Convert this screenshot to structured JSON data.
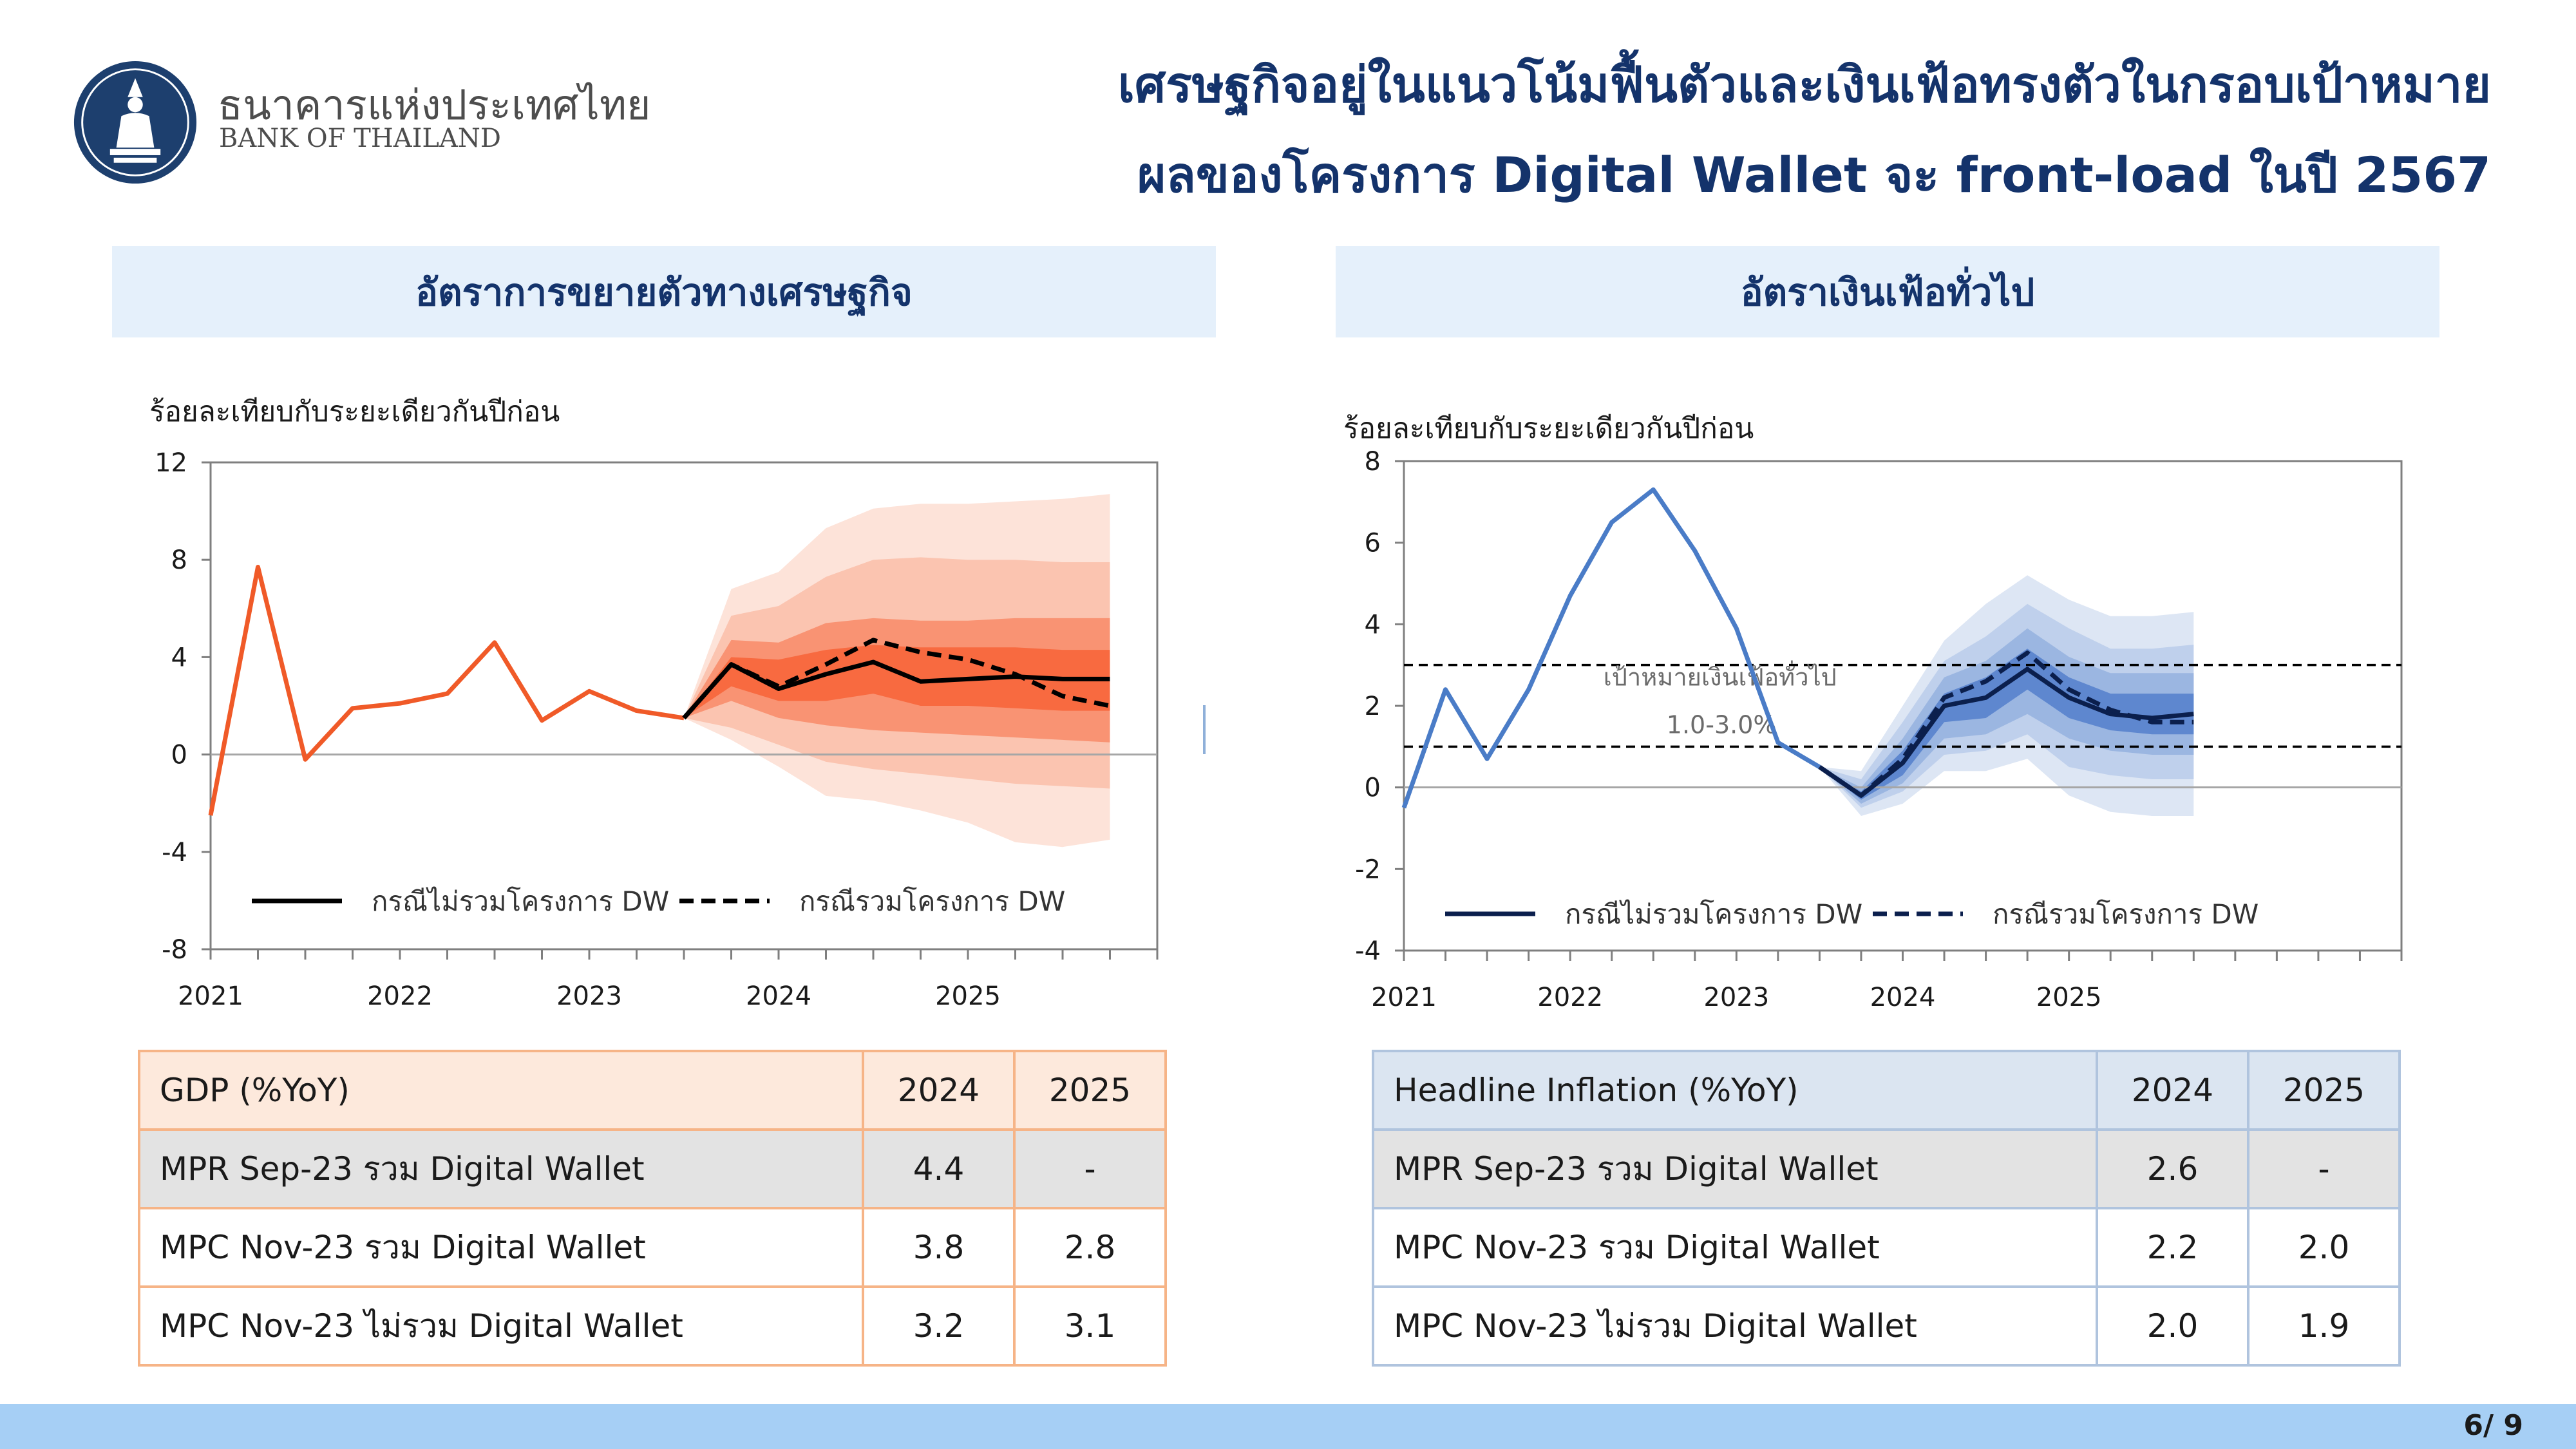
{
  "header": {
    "bank_name_th": "ธนาคารแห่งประเทศไทย",
    "bank_name_en": "BANK OF THAILAND",
    "title_line1": "เศรษฐกิจอยู่ในแนวโน้มฟื้นตัวและเงินเฟ้อทรงตัวในกรอบเป้าหมาย",
    "title_line2": "ผลของโครงการ Digital Wallet จะ front-load ในปี 2567"
  },
  "colors": {
    "gdp_line": "#f05a28",
    "gdp_fan": [
      "#fde3d9",
      "#fbc4b0",
      "#f99373",
      "#f86a40"
    ],
    "inf_line": "#4a7cc7",
    "inf_fan": [
      "#dde6f4",
      "#bfd0ec",
      "#9bb6e1",
      "#5e87cf"
    ],
    "projection_line": "#000000",
    "inf_projection_line": "#0b1f4d"
  },
  "chart_data": [
    {
      "type": "line",
      "section_title": "อัตราการขยายตัวทางเศรษฐกิจ",
      "ylabel": "ร้อยละเทียบกับระยะเดียวกันปีก่อน",
      "ylim": [
        -8,
        12
      ],
      "yticks": [
        -8,
        -4,
        0,
        4,
        8,
        12
      ],
      "xlim": [
        0,
        20
      ],
      "xticks": [
        {
          "x": 0,
          "label": "2021"
        },
        {
          "x": 4,
          "label": "2022"
        },
        {
          "x": 8,
          "label": "2023"
        },
        {
          "x": 12,
          "label": "2024"
        },
        {
          "x": 16,
          "label": "2025"
        }
      ],
      "grid": false,
      "legend_position": "bottom-left inside plot",
      "series": [
        {
          "role": "actual",
          "x": [
            0,
            1,
            2,
            3,
            4,
            5,
            6,
            7,
            8,
            9,
            10
          ],
          "values": [
            -2.5,
            7.7,
            -0.2,
            1.9,
            2.1,
            2.5,
            4.6,
            1.4,
            2.6,
            1.8,
            1.5
          ]
        },
        {
          "name": "กรณีไม่รวมโครงการ DW",
          "style": "solid",
          "x": [
            10,
            11,
            12,
            13,
            14,
            15,
            16,
            17,
            18,
            19
          ],
          "values": [
            1.5,
            3.7,
            2.7,
            3.3,
            3.8,
            3.0,
            3.1,
            3.2,
            3.1,
            3.1
          ]
        },
        {
          "name": "กรณีรวมโครงการ DW",
          "style": "dashed",
          "x": [
            10,
            11,
            12,
            13,
            14,
            15,
            16,
            17,
            18,
            19
          ],
          "values": [
            1.5,
            3.7,
            2.8,
            3.7,
            4.7,
            4.2,
            3.9,
            3.3,
            2.4,
            2.0
          ]
        }
      ],
      "fan": {
        "x": [
          10,
          11,
          12,
          13,
          14,
          15,
          16,
          17,
          18,
          19
        ],
        "bands": [
          {
            "upper": [
              1.5,
              6.8,
              7.5,
              9.3,
              10.1,
              10.3,
              10.3,
              10.4,
              10.5,
              10.7
            ],
            "lower": [
              1.5,
              0.6,
              -0.5,
              -1.7,
              -1.9,
              -2.3,
              -2.8,
              -3.6,
              -3.8,
              -3.5
            ]
          },
          {
            "upper": [
              1.5,
              5.7,
              6.1,
              7.3,
              8.0,
              8.1,
              8.0,
              8.0,
              7.9,
              7.9
            ],
            "lower": [
              1.5,
              1.1,
              0.4,
              -0.3,
              -0.6,
              -0.8,
              -1.0,
              -1.2,
              -1.3,
              -1.4
            ]
          },
          {
            "upper": [
              1.5,
              4.7,
              4.6,
              5.4,
              5.6,
              5.5,
              5.5,
              5.6,
              5.6,
              5.6
            ],
            "lower": [
              1.5,
              2.2,
              1.5,
              1.2,
              1.0,
              0.9,
              0.8,
              0.7,
              0.6,
              0.5
            ]
          },
          {
            "upper": [
              1.5,
              4.0,
              3.9,
              4.3,
              4.5,
              4.4,
              4.4,
              4.4,
              4.3,
              4.3
            ],
            "lower": [
              1.5,
              2.8,
              2.2,
              2.2,
              2.5,
              2.0,
              2.0,
              1.9,
              1.8,
              1.8
            ]
          }
        ]
      }
    },
    {
      "type": "line",
      "section_title": "อัตราเงินเฟ้อทั่วไป",
      "ylabel": "ร้อยละเทียบกับระยะเดียวกันปีก่อน",
      "ylim": [
        -4,
        8
      ],
      "yticks": [
        -4,
        -2,
        0,
        2,
        4,
        6,
        8
      ],
      "xlim": [
        0,
        24
      ],
      "xticks": [
        {
          "x": 0,
          "label": "2021"
        },
        {
          "x": 4,
          "label": "2022"
        },
        {
          "x": 8,
          "label": "2023"
        },
        {
          "x": 12,
          "label": "2024"
        },
        {
          "x": 16,
          "label": "2025"
        }
      ],
      "grid": false,
      "legend_position": "bottom-left inside plot",
      "target_band": {
        "lower": 1.0,
        "upper": 3.0,
        "label_line1": "เป้าหมายเงินเฟ้อทั่วไป",
        "label_line2": "1.0-3.0%"
      },
      "series": [
        {
          "role": "actual",
          "x": [
            0,
            1,
            2,
            3,
            4,
            5,
            6,
            7,
            8,
            9,
            10
          ],
          "values": [
            -0.5,
            2.4,
            0.7,
            2.4,
            4.7,
            6.5,
            7.3,
            5.8,
            3.9,
            1.1,
            0.5
          ]
        },
        {
          "name": "กรณีไม่รวมโครงการ DW",
          "style": "solid",
          "x": [
            10,
            11,
            12,
            13,
            14,
            15,
            16,
            17,
            18,
            19
          ],
          "values": [
            0.5,
            -0.2,
            0.6,
            2.0,
            2.2,
            2.9,
            2.2,
            1.8,
            1.7,
            1.8
          ]
        },
        {
          "name": "กรณีรวมโครงการ DW",
          "style": "dashed",
          "x": [
            10,
            11,
            12,
            13,
            14,
            15,
            16,
            17,
            18,
            19
          ],
          "values": [
            0.5,
            -0.2,
            0.7,
            2.2,
            2.6,
            3.3,
            2.4,
            1.9,
            1.6,
            1.6
          ]
        }
      ],
      "fan": {
        "x": [
          10,
          11,
          12,
          13,
          14,
          15,
          16,
          17,
          18,
          19
        ],
        "bands": [
          {
            "upper": [
              0.5,
              0.4,
              2.0,
              3.6,
              4.5,
              5.2,
              4.6,
              4.2,
              4.2,
              4.3
            ],
            "lower": [
              0.5,
              -0.7,
              -0.4,
              0.4,
              0.4,
              0.7,
              -0.2,
              -0.6,
              -0.7,
              -0.7
            ]
          },
          {
            "upper": [
              0.5,
              0.2,
              1.6,
              3.1,
              3.7,
              4.5,
              3.9,
              3.4,
              3.4,
              3.5
            ],
            "lower": [
              0.5,
              -0.5,
              -0.1,
              0.8,
              0.9,
              1.3,
              0.5,
              0.3,
              0.2,
              0.2
            ]
          },
          {
            "upper": [
              0.5,
              0.0,
              1.2,
              2.7,
              3.1,
              3.9,
              3.2,
              2.8,
              2.8,
              2.8
            ],
            "lower": [
              0.5,
              -0.4,
              0.1,
              1.2,
              1.3,
              1.8,
              1.2,
              0.9,
              0.8,
              0.8
            ]
          },
          {
            "upper": [
              0.5,
              -0.1,
              0.9,
              2.3,
              2.7,
              3.4,
              2.7,
              2.3,
              2.3,
              2.3
            ],
            "lower": [
              0.5,
              -0.3,
              0.3,
              1.6,
              1.7,
              2.4,
              1.7,
              1.4,
              1.3,
              1.3
            ]
          }
        ]
      }
    }
  ],
  "gdp_table": {
    "header": [
      "GDP (%YoY)",
      "2024",
      "2025"
    ],
    "rows": [
      [
        "MPR Sep-23 รวม Digital Wallet",
        "4.4",
        "-"
      ],
      [
        "MPC Nov-23 รวม Digital Wallet",
        "3.8",
        "2.8"
      ],
      [
        "MPC Nov-23 ไม่รวม Digital Wallet",
        "3.2",
        "3.1"
      ]
    ]
  },
  "inflation_table": {
    "header": [
      "Headline Inflation (%YoY)",
      "2024",
      "2025"
    ],
    "rows": [
      [
        "MPR Sep-23 รวม Digital Wallet",
        "2.6",
        "-"
      ],
      [
        "MPC Nov-23 รวม Digital Wallet",
        "2.2",
        "2.0"
      ],
      [
        "MPC Nov-23 ไม่รวม Digital Wallet",
        "2.0",
        "1.9"
      ]
    ]
  },
  "footer": {
    "page": "6/ 9"
  }
}
